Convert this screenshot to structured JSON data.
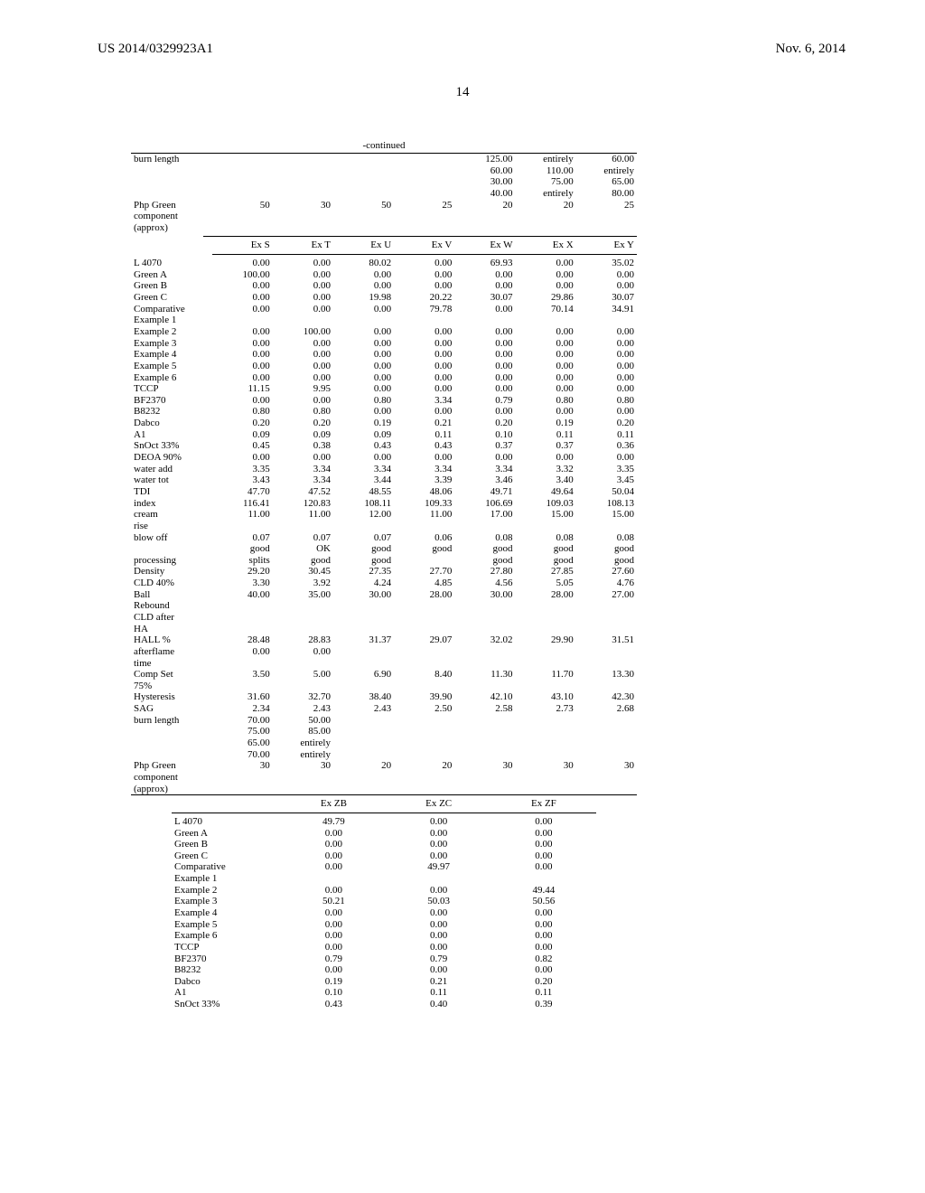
{
  "header": {
    "publication": "US 2014/0329923A1",
    "date": "Nov. 6, 2014",
    "pagenum": "14"
  },
  "continued_label": "-continued",
  "table1": {
    "rows": [
      {
        "label": "burn length",
        "v": [
          "",
          "",
          "",
          "",
          "125.00",
          "entirely",
          "60.00"
        ]
      },
      {
        "label": "",
        "v": [
          "",
          "",
          "",
          "",
          "60.00",
          "110.00",
          "entirely"
        ]
      },
      {
        "label": "",
        "v": [
          "",
          "",
          "",
          "",
          "30.00",
          "75.00",
          "65.00"
        ]
      },
      {
        "label": "",
        "v": [
          "",
          "",
          "",
          "",
          "40.00",
          "entirely",
          "80.00"
        ]
      },
      {
        "label": "Php Green",
        "v": [
          "50",
          "30",
          "50",
          "25",
          "20",
          "20",
          "25"
        ]
      },
      {
        "label": "component",
        "v": [
          "",
          "",
          "",
          "",
          "",
          "",
          ""
        ]
      },
      {
        "label": "(approx)",
        "v": [
          "",
          "",
          "",
          "",
          "",
          "",
          ""
        ]
      }
    ]
  },
  "table2": {
    "headers": [
      "",
      "Ex S",
      "Ex T",
      "Ex U",
      "Ex V",
      "Ex W",
      "Ex X",
      "Ex Y"
    ],
    "rows": [
      [
        "L 4070",
        "0.00",
        "0.00",
        "80.02",
        "0.00",
        "69.93",
        "0.00",
        "35.02"
      ],
      [
        "Green A",
        "100.00",
        "0.00",
        "0.00",
        "0.00",
        "0.00",
        "0.00",
        "0.00"
      ],
      [
        "Green B",
        "0.00",
        "0.00",
        "0.00",
        "0.00",
        "0.00",
        "0.00",
        "0.00"
      ],
      [
        "Green C",
        "0.00",
        "0.00",
        "19.98",
        "20.22",
        "30.07",
        "29.86",
        "30.07"
      ],
      [
        "Comparative",
        "0.00",
        "0.00",
        "0.00",
        "79.78",
        "0.00",
        "70.14",
        "34.91"
      ],
      [
        "Example 1",
        "",
        "",
        "",
        "",
        "",
        "",
        ""
      ],
      [
        "Example 2",
        "0.00",
        "100.00",
        "0.00",
        "0.00",
        "0.00",
        "0.00",
        "0.00"
      ],
      [
        "Example 3",
        "0.00",
        "0.00",
        "0.00",
        "0.00",
        "0.00",
        "0.00",
        "0.00"
      ],
      [
        "Example 4",
        "0.00",
        "0.00",
        "0.00",
        "0.00",
        "0.00",
        "0.00",
        "0.00"
      ],
      [
        "Example 5",
        "0.00",
        "0.00",
        "0.00",
        "0.00",
        "0.00",
        "0.00",
        "0.00"
      ],
      [
        "Example 6",
        "0.00",
        "0.00",
        "0.00",
        "0.00",
        "0.00",
        "0.00",
        "0.00"
      ],
      [
        "TCCP",
        "11.15",
        "9.95",
        "0.00",
        "0.00",
        "0.00",
        "0.00",
        "0.00"
      ],
      [
        "BF2370",
        "0.00",
        "0.00",
        "0.80",
        "3.34",
        "0.79",
        "0.80",
        "0.80"
      ],
      [
        "B8232",
        "0.80",
        "0.80",
        "0.00",
        "0.00",
        "0.00",
        "0.00",
        "0.00"
      ],
      [
        "Dabco",
        "0.20",
        "0.20",
        "0.19",
        "0.21",
        "0.20",
        "0.19",
        "0.20"
      ],
      [
        "A1",
        "0.09",
        "0.09",
        "0.09",
        "0.11",
        "0.10",
        "0.11",
        "0.11"
      ],
      [
        "SnOct 33%",
        "0.45",
        "0.38",
        "0.43",
        "0.43",
        "0.37",
        "0.37",
        "0.36"
      ],
      [
        "DEOA 90%",
        "0.00",
        "0.00",
        "0.00",
        "0.00",
        "0.00",
        "0.00",
        "0.00"
      ],
      [
        "water add",
        "3.35",
        "3.34",
        "3.34",
        "3.34",
        "3.34",
        "3.32",
        "3.35"
      ],
      [
        "water tot",
        "3.43",
        "3.34",
        "3.44",
        "3.39",
        "3.46",
        "3.40",
        "3.45"
      ],
      [
        "TDI",
        "47.70",
        "47.52",
        "48.55",
        "48.06",
        "49.71",
        "49.64",
        "50.04"
      ],
      [
        "index",
        "116.41",
        "120.83",
        "108.11",
        "109.33",
        "106.69",
        "109.03",
        "108.13"
      ],
      [
        "cream",
        "11.00",
        "11.00",
        "12.00",
        "11.00",
        "17.00",
        "15.00",
        "15.00"
      ],
      [
        "rise",
        "",
        "",
        "",
        "",
        "",
        "",
        ""
      ],
      [
        "blow off",
        "0.07",
        "0.07",
        "0.07",
        "0.06",
        "0.08",
        "0.08",
        "0.08"
      ],
      [
        "",
        "good",
        "OK",
        "good",
        "good",
        "good",
        "good",
        "good"
      ],
      [
        "processing",
        "splits",
        "good",
        "good",
        "",
        "good",
        "good",
        "good"
      ],
      [
        "Density",
        "29.20",
        "30.45",
        "27.35",
        "27.70",
        "27.80",
        "27.85",
        "27.60"
      ],
      [
        "CLD 40%",
        "3.30",
        "3.92",
        "4.24",
        "4.85",
        "4.56",
        "5.05",
        "4.76"
      ],
      [
        "Ball",
        "40.00",
        "35.00",
        "30.00",
        "28.00",
        "30.00",
        "28.00",
        "27.00"
      ],
      [
        "Rebound",
        "",
        "",
        "",
        "",
        "",
        "",
        ""
      ],
      [
        "CLD after",
        "",
        "",
        "",
        "",
        "",
        "",
        ""
      ],
      [
        "HA",
        "",
        "",
        "",
        "",
        "",
        "",
        ""
      ],
      [
        "HALL %",
        "28.48",
        "28.83",
        "31.37",
        "29.07",
        "32.02",
        "29.90",
        "31.51"
      ],
      [
        "afterflame",
        "0.00",
        "0.00",
        "",
        "",
        "",
        "",
        ""
      ],
      [
        "time",
        "",
        "",
        "",
        "",
        "",
        "",
        ""
      ],
      [
        "Comp Set",
        "3.50",
        "5.00",
        "6.90",
        "8.40",
        "11.30",
        "11.70",
        "13.30"
      ],
      [
        "75%",
        "",
        "",
        "",
        "",
        "",
        "",
        ""
      ],
      [
        "Hysteresis",
        "31.60",
        "32.70",
        "38.40",
        "39.90",
        "42.10",
        "43.10",
        "42.30"
      ],
      [
        "SAG",
        "2.34",
        "2.43",
        "2.43",
        "2.50",
        "2.58",
        "2.73",
        "2.68"
      ],
      [
        "burn length",
        "70.00",
        "50.00",
        "",
        "",
        "",
        "",
        ""
      ],
      [
        "",
        "75.00",
        "85.00",
        "",
        "",
        "",
        "",
        ""
      ],
      [
        "",
        "65.00",
        "entirely",
        "",
        "",
        "",
        "",
        ""
      ],
      [
        "",
        "70.00",
        "entirely",
        "",
        "",
        "",
        "",
        ""
      ],
      [
        "Php Green",
        "30",
        "30",
        "20",
        "20",
        "30",
        "30",
        "30"
      ],
      [
        "component",
        "",
        "",
        "",
        "",
        "",
        "",
        ""
      ],
      [
        "(approx)",
        "",
        "",
        "",
        "",
        "",
        "",
        ""
      ]
    ]
  },
  "table3": {
    "headers": [
      "",
      "Ex ZB",
      "Ex ZC",
      "Ex ZF"
    ],
    "rows": [
      [
        "L 4070",
        "49.79",
        "0.00",
        "0.00"
      ],
      [
        "Green A",
        "0.00",
        "0.00",
        "0.00"
      ],
      [
        "Green B",
        "0.00",
        "0.00",
        "0.00"
      ],
      [
        "Green C",
        "0.00",
        "0.00",
        "0.00"
      ],
      [
        "Comparative",
        "0.00",
        "49.97",
        "0.00"
      ],
      [
        "Example 1",
        "",
        "",
        ""
      ],
      [
        "Example 2",
        "0.00",
        "0.00",
        "49.44"
      ],
      [
        "Example 3",
        "50.21",
        "50.03",
        "50.56"
      ],
      [
        "Example 4",
        "0.00",
        "0.00",
        "0.00"
      ],
      [
        "Example 5",
        "0.00",
        "0.00",
        "0.00"
      ],
      [
        "Example 6",
        "0.00",
        "0.00",
        "0.00"
      ],
      [
        "TCCP",
        "0.00",
        "0.00",
        "0.00"
      ],
      [
        "BF2370",
        "0.79",
        "0.79",
        "0.82"
      ],
      [
        "B8232",
        "0.00",
        "0.00",
        "0.00"
      ],
      [
        "Dabco",
        "0.19",
        "0.21",
        "0.20"
      ],
      [
        "A1",
        "0.10",
        "0.11",
        "0.11"
      ],
      [
        "SnOct 33%",
        "0.43",
        "0.40",
        "0.39"
      ]
    ]
  }
}
